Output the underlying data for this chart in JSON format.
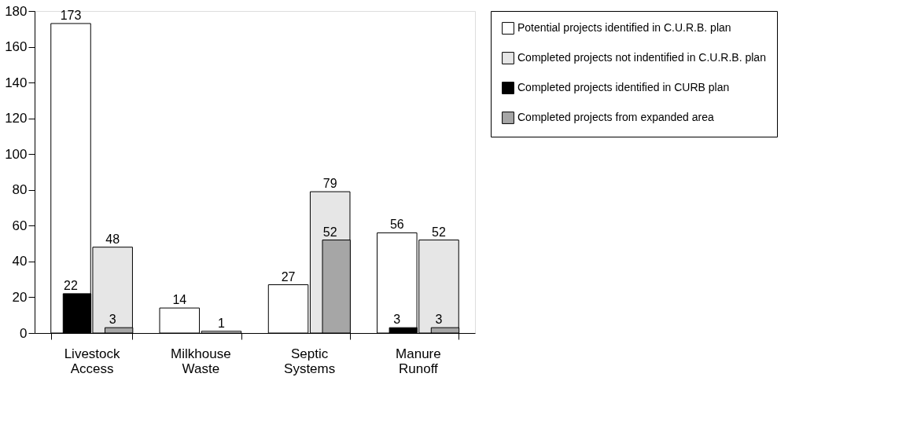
{
  "chart_data": {
    "type": "bar",
    "categories": [
      "Livestock Access",
      "Milkhouse Waste",
      "Septic Systems",
      "Manure Runoff"
    ],
    "series": [
      {
        "name": "Potential projects identified in C.U.R.B. plan",
        "color": "#ffffff",
        "values": [
          173,
          14,
          27,
          56
        ]
      },
      {
        "name": "Completed projects not indentified in C.U.R.B. plan",
        "color": "#e6e6e6",
        "values": [
          48,
          1,
          79,
          52
        ]
      },
      {
        "name": "Completed projects identified in CURB plan",
        "color": "#000000",
        "values": [
          22,
          null,
          null,
          3
        ]
      },
      {
        "name": "Completed projects from expanded area",
        "color": "#a6a6a6",
        "values": [
          3,
          null,
          52,
          3
        ]
      }
    ],
    "ylim": [
      0,
      180
    ],
    "yticks": [
      0,
      20,
      40,
      60,
      80,
      100,
      120,
      140,
      160,
      180
    ],
    "data_labels": true,
    "legend": "right"
  }
}
